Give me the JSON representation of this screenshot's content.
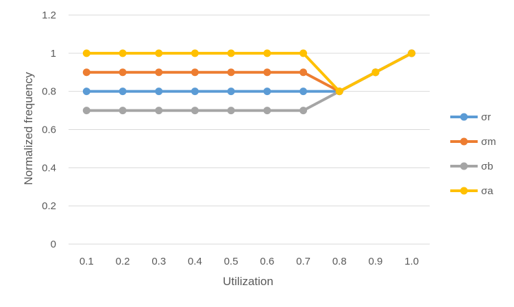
{
  "chart_data": {
    "type": "line",
    "title": "",
    "xlabel": "Utilization",
    "ylabel": "Normalized frequency",
    "categories": [
      "0.1",
      "0.2",
      "0.3",
      "0.4",
      "0.5",
      "0.6",
      "0.7",
      "0.8",
      "0.9",
      "1.0"
    ],
    "ylim": [
      0,
      1.2
    ],
    "yticks": [
      "0",
      "0.2",
      "0.4",
      "0.6",
      "0.8",
      "1",
      "1.2"
    ],
    "ytick_values": [
      0,
      0.2,
      0.4,
      0.6,
      0.8,
      1,
      1.2
    ],
    "grid": "horizontal",
    "legend_position": "right",
    "series": [
      {
        "name": "σr",
        "color": "#5B9BD5",
        "values": [
          0.8,
          0.8,
          0.8,
          0.8,
          0.8,
          0.8,
          0.8,
          0.8,
          0.9,
          1.0
        ]
      },
      {
        "name": "σm",
        "color": "#ED7D31",
        "values": [
          0.9,
          0.9,
          0.9,
          0.9,
          0.9,
          0.9,
          0.9,
          0.8,
          0.9,
          1.0
        ]
      },
      {
        "name": "σb",
        "color": "#A5A5A5",
        "values": [
          0.7,
          0.7,
          0.7,
          0.7,
          0.7,
          0.7,
          0.7,
          0.8,
          0.9,
          1.0
        ]
      },
      {
        "name": "σa",
        "color": "#FFC000",
        "values": [
          1.0,
          1.0,
          1.0,
          1.0,
          1.0,
          1.0,
          1.0,
          0.8,
          0.9,
          1.0
        ]
      }
    ]
  }
}
